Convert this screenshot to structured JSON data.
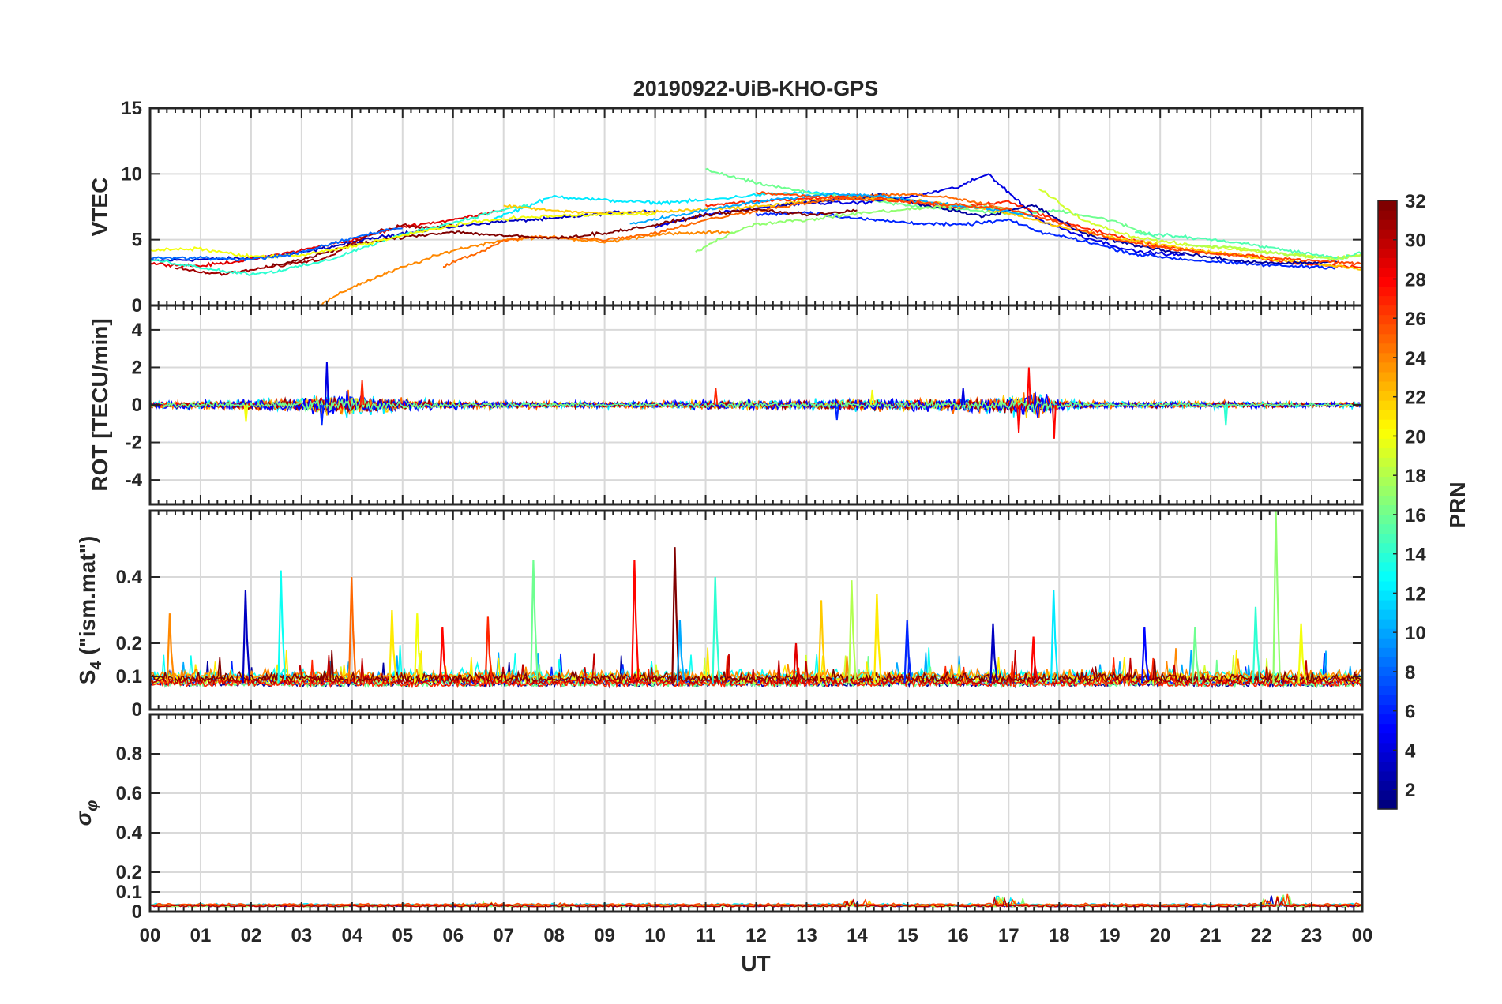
{
  "title": "20190922-UiB-KHO-GPS",
  "chart_data": [
    {
      "type": "line",
      "panel": "vtec",
      "ylabel": "VTEC",
      "ylim": [
        0,
        15
      ],
      "yticks": [
        0,
        5,
        10,
        15
      ],
      "grid": true,
      "series": [
        {
          "prn": 3,
          "x": [
            0,
            1,
            2,
            3,
            4,
            5,
            6,
            7,
            8,
            9,
            10
          ],
          "y": [
            3.4,
            3.5,
            3.6,
            4.0,
            4.8,
            5.5,
            6.0,
            6.4,
            6.6,
            7.0,
            7.2
          ]
        },
        {
          "prn": 29,
          "x": [
            0,
            1,
            2,
            3,
            4,
            5,
            6,
            7
          ],
          "y": [
            3.2,
            3.0,
            3.5,
            4.2,
            5.0,
            6.0,
            6.5,
            7.3
          ]
        },
        {
          "prn": 24,
          "x": [
            3.4,
            4,
            5,
            6,
            7,
            8,
            9,
            10,
            11.5
          ],
          "y": [
            0.1,
            1.4,
            2.9,
            4.2,
            5.0,
            5.2,
            4.8,
            5.4,
            5.6
          ]
        },
        {
          "prn": 12,
          "x": [
            6.8,
            8,
            9,
            10,
            11,
            12,
            13,
            14,
            15
          ],
          "y": [
            6.6,
            8.3,
            8.0,
            7.8,
            8.0,
            8.4,
            8.6,
            8.3,
            8.0
          ]
        },
        {
          "prn": 16,
          "x": [
            11,
            12,
            13,
            14,
            15,
            16,
            17,
            18,
            19,
            20
          ],
          "y": [
            10.3,
            9.3,
            8.6,
            8.1,
            7.6,
            7.3,
            7.0,
            7.2,
            6.5,
            5.1
          ]
        },
        {
          "prn": 4,
          "x": [
            10,
            11,
            12,
            13,
            14,
            15,
            16,
            16.6,
            17.6,
            18.5,
            19.5,
            20.5
          ],
          "y": [
            6.0,
            6.9,
            7.4,
            7.8,
            7.8,
            8.2,
            9.0,
            10.0,
            6.5,
            5.2,
            4.1,
            3.8
          ]
        },
        {
          "prn": 19,
          "x": [
            17.6,
            18.5,
            19.5,
            20.5,
            21.5,
            22.5,
            23.5,
            24
          ],
          "y": [
            8.9,
            6.4,
            5.2,
            4.6,
            4.3,
            3.9,
            3.6,
            3.9
          ]
        },
        {
          "prn": 27,
          "x": [
            11,
            12,
            13,
            14,
            15,
            16,
            17,
            18,
            19,
            20,
            21,
            22,
            23,
            24
          ],
          "y": [
            7.6,
            7.9,
            8.1,
            8.4,
            7.9,
            7.4,
            7.9,
            6.4,
            5.4,
            4.5,
            4.0,
            3.6,
            3.1,
            2.9
          ]
        },
        {
          "prn": 6,
          "x": [
            12,
            13,
            14,
            15,
            16,
            17,
            17.6,
            18.5,
            19.5,
            20.5,
            21.5,
            22.5,
            23.5
          ],
          "y": [
            6.9,
            7.1,
            6.6,
            6.3,
            6.1,
            6.5,
            5.6,
            4.9,
            3.9,
            3.5,
            3.2,
            3.0,
            2.9
          ]
        },
        {
          "prn": 31,
          "x": [
            0.5,
            1,
            1.5,
            2,
            2.5,
            3,
            3.5,
            4,
            4.5,
            5,
            5.5,
            6
          ],
          "y": [
            2.9,
            2.5,
            2.4,
            2.7,
            3.0,
            3.3,
            3.6,
            4.8,
            5.6,
            6.1,
            5.9,
            6.1
          ]
        },
        {
          "prn": 14,
          "x": [
            0,
            0.5,
            1,
            1.5,
            2,
            2.5,
            3,
            3.5,
            4,
            5,
            6,
            7,
            7.5
          ],
          "y": [
            3.5,
            3.2,
            2.9,
            2.6,
            2.4,
            2.6,
            3.0,
            3.4,
            4.1,
            5.4,
            6.3,
            7.3,
            7.6
          ]
        },
        {
          "prn": 22,
          "x": [
            7,
            8,
            9,
            10,
            11,
            12,
            13,
            14,
            15,
            16,
            17,
            18,
            19,
            20,
            21,
            22,
            23,
            24
          ],
          "y": [
            7.6,
            7.2,
            7.0,
            7.1,
            7.3,
            7.5,
            7.9,
            8.2,
            8.0,
            7.6,
            7.0,
            6.0,
            5.2,
            4.6,
            4.1,
            3.6,
            3.2,
            2.8
          ]
        },
        {
          "prn": 15,
          "x": [
            19.5,
            20.5,
            21.5,
            22.5,
            23.5,
            24
          ],
          "y": [
            5.5,
            5.2,
            4.8,
            4.2,
            3.6,
            4.0
          ]
        },
        {
          "prn": 2,
          "x": [
            12.5,
            13.5,
            14.5,
            15.5,
            16.5,
            17.5,
            18.5,
            19.5,
            20.5,
            21.5,
            22.5,
            23.5
          ],
          "y": [
            7.6,
            8.0,
            8.4,
            7.5,
            6.8,
            7.6,
            5.4,
            4.6,
            3.9,
            3.4,
            3.2,
            3.3
          ]
        },
        {
          "prn": 25,
          "x": [
            5.8,
            6.5,
            7,
            7.5,
            8,
            9,
            10,
            11,
            12,
            13,
            14,
            15,
            16,
            17
          ],
          "y": [
            3.0,
            4.0,
            4.9,
            5.2,
            5.2,
            5.0,
            5.5,
            6.5,
            7.2,
            7.8,
            8.2,
            8.5,
            8.1,
            7.3
          ]
        },
        {
          "prn": 17,
          "x": [
            10.8,
            11.5,
            12,
            13,
            14,
            15,
            16,
            17
          ],
          "y": [
            4.1,
            5.5,
            6.2,
            6.5,
            7.0,
            7.3,
            7.6,
            7.3
          ]
        },
        {
          "prn": 10,
          "x": [
            9.5,
            10.5,
            11.5,
            12.5,
            13.5,
            14.5,
            15.5,
            16.5,
            17.5
          ],
          "y": [
            6.2,
            6.9,
            7.6,
            8.1,
            8.5,
            8.3,
            7.8,
            7.4,
            6.8
          ]
        },
        {
          "prn": 32,
          "x": [
            2.4,
            3,
            4,
            5,
            6,
            7,
            8,
            9,
            10,
            11,
            12,
            13,
            14
          ],
          "y": [
            3.0,
            3.5,
            4.6,
            5.2,
            5.6,
            5.3,
            5.1,
            5.5,
            6.1,
            6.9,
            7.3,
            6.9,
            7.2
          ]
        },
        {
          "prn": 20,
          "x": [
            0,
            1,
            2,
            3,
            4,
            5,
            6,
            7,
            8,
            9,
            10
          ],
          "y": [
            4.2,
            4.3,
            3.7,
            3.8,
            4.5,
            5.3,
            6.1,
            6.6,
            6.8,
            6.9,
            7.0
          ]
        },
        {
          "prn": 8,
          "x": [
            0,
            1,
            2,
            3,
            3.5,
            4,
            4.5,
            5
          ],
          "y": [
            3.6,
            3.6,
            3.5,
            4.0,
            4.6,
            5.1,
            5.6,
            5.9
          ]
        },
        {
          "prn": 26,
          "x": [
            12,
            13,
            14,
            15,
            16,
            17,
            18,
            19,
            20,
            21,
            22,
            23,
            24
          ],
          "y": [
            8.6,
            8.3,
            8.1,
            7.9,
            7.6,
            7.3,
            6.3,
            5.1,
            4.4,
            4.0,
            3.7,
            3.4,
            3.2
          ]
        },
        {
          "prn": 18,
          "x": [
            20.5,
            21.5,
            22.5,
            23.5,
            24
          ],
          "y": [
            4.6,
            4.4,
            3.9,
            3.5,
            3.8
          ]
        }
      ]
    },
    {
      "type": "line",
      "panel": "rot",
      "ylabel": "ROT [TECU/min]",
      "ylim": [
        -5.3,
        5.3
      ],
      "yticks": [
        -4,
        -2,
        0,
        2,
        4
      ],
      "grid": true,
      "noise_profile": {
        "x": [
          0,
          1,
          2,
          3,
          3.5,
          4,
          5,
          6,
          7,
          8,
          9,
          10,
          11,
          12,
          13,
          14,
          15,
          16,
          17,
          17.5,
          18,
          19,
          20,
          21,
          22,
          23,
          24
        ],
        "amplitude": [
          0.3,
          0.3,
          0.4,
          0.6,
          0.9,
          0.9,
          0.5,
          0.3,
          0.3,
          0.25,
          0.25,
          0.25,
          0.35,
          0.35,
          0.4,
          0.45,
          0.45,
          0.5,
          0.7,
          1.0,
          0.4,
          0.25,
          0.25,
          0.25,
          0.25,
          0.2,
          0.2
        ]
      },
      "peaks": [
        {
          "x": 3.5,
          "y": 2.3
        },
        {
          "x": 3.4,
          "y": -1.1
        },
        {
          "x": 4.2,
          "y": 1.3
        },
        {
          "x": 1.9,
          "y": -0.9
        },
        {
          "x": 17.4,
          "y": 2.0
        },
        {
          "x": 17.9,
          "y": -1.8
        },
        {
          "x": 17.2,
          "y": -1.5
        },
        {
          "x": 11.2,
          "y": 0.9
        },
        {
          "x": 14.3,
          "y": 0.8
        },
        {
          "x": 21.3,
          "y": -1.1
        },
        {
          "x": 16.1,
          "y": 0.9
        },
        {
          "x": 13.6,
          "y": -0.8
        }
      ]
    },
    {
      "type": "line",
      "panel": "s4",
      "ylabel": "S4 (\"ism.mat\")",
      "ylim": [
        0,
        0.6
      ],
      "yticks": [
        0,
        0.1,
        0.2,
        0.4
      ],
      "grid": true,
      "baseline": 0.07,
      "peaks": [
        {
          "x": 0.4,
          "y": 0.29,
          "prn": 24
        },
        {
          "x": 1.9,
          "y": 0.36,
          "prn": 3
        },
        {
          "x": 2.6,
          "y": 0.42,
          "prn": 13
        },
        {
          "x": 4.0,
          "y": 0.4,
          "prn": 25
        },
        {
          "x": 4.8,
          "y": 0.3,
          "prn": 21
        },
        {
          "x": 5.3,
          "y": 0.29,
          "prn": 20
        },
        {
          "x": 5.8,
          "y": 0.25,
          "prn": 28
        },
        {
          "x": 6.7,
          "y": 0.28,
          "prn": 27
        },
        {
          "x": 7.6,
          "y": 0.45,
          "prn": 16
        },
        {
          "x": 9.6,
          "y": 0.45,
          "prn": 28
        },
        {
          "x": 10.4,
          "y": 0.49,
          "prn": 32
        },
        {
          "x": 10.5,
          "y": 0.27,
          "prn": 10
        },
        {
          "x": 11.2,
          "y": 0.4,
          "prn": 14
        },
        {
          "x": 12.8,
          "y": 0.2,
          "prn": 29
        },
        {
          "x": 13.3,
          "y": 0.33,
          "prn": 22
        },
        {
          "x": 13.9,
          "y": 0.39,
          "prn": 18
        },
        {
          "x": 14.4,
          "y": 0.35,
          "prn": 21
        },
        {
          "x": 15.0,
          "y": 0.27,
          "prn": 6
        },
        {
          "x": 16.7,
          "y": 0.26,
          "prn": 3
        },
        {
          "x": 17.5,
          "y": 0.22,
          "prn": 28
        },
        {
          "x": 17.9,
          "y": 0.36,
          "prn": 12
        },
        {
          "x": 22.3,
          "y": 0.6,
          "prn": 17
        },
        {
          "x": 21.9,
          "y": 0.31,
          "prn": 14
        },
        {
          "x": 22.8,
          "y": 0.26,
          "prn": 20
        },
        {
          "x": 20.7,
          "y": 0.25,
          "prn": 16
        },
        {
          "x": 19.7,
          "y": 0.25,
          "prn": 5
        }
      ]
    },
    {
      "type": "line",
      "panel": "sigma_phi",
      "ylabel": "σφ",
      "ylim": [
        0,
        1
      ],
      "yticks": [
        0,
        0.1,
        0.2,
        0.4,
        0.6,
        0.8
      ],
      "grid": true,
      "baseline": 0.025,
      "peaks": [
        {
          "x": 17.0,
          "y": 0.08
        },
        {
          "x": 22.3,
          "y": 0.09
        },
        {
          "x": 14.0,
          "y": 0.06
        },
        {
          "x": 6.7,
          "y": 0.05
        }
      ]
    }
  ],
  "x_axis": {
    "label": "UT",
    "range_hours": [
      0,
      24
    ],
    "tick_labels": [
      "00",
      "01",
      "02",
      "03",
      "04",
      "05",
      "06",
      "07",
      "08",
      "09",
      "10",
      "11",
      "12",
      "13",
      "14",
      "15",
      "16",
      "17",
      "18",
      "19",
      "20",
      "21",
      "22",
      "23",
      "00"
    ]
  },
  "colorbar": {
    "label": "PRN",
    "range": [
      1,
      32
    ],
    "tick_labels": [
      "2",
      "4",
      "6",
      "8",
      "10",
      "12",
      "14",
      "16",
      "18",
      "20",
      "22",
      "24",
      "26",
      "28",
      "30",
      "32"
    ],
    "colormap": "jet"
  }
}
